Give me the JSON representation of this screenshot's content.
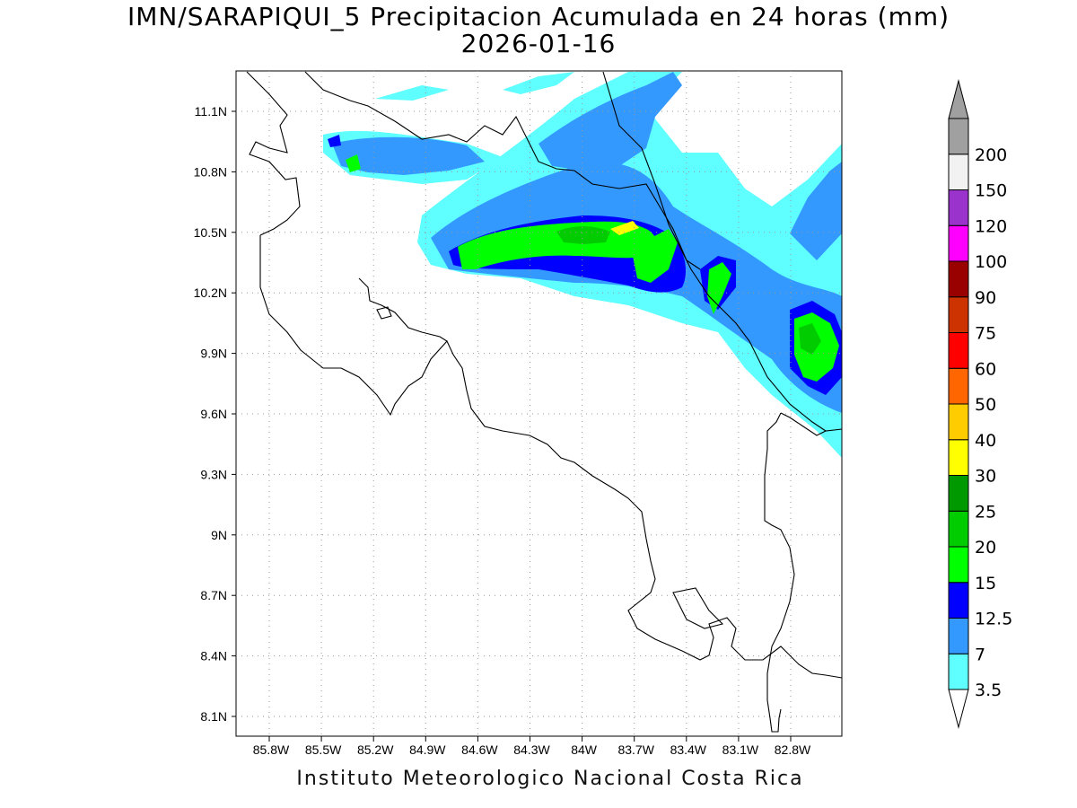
{
  "header": {
    "title": "IMN/SARAPIQUI_5 Precipitacion Acumulada en 24 horas (mm)",
    "date": "2026-01-16"
  },
  "footer": {
    "credit": "Instituto Meteorologico Nacional Costa Rica"
  },
  "map": {
    "lat_ticks": [
      "11.1N",
      "10.8N",
      "10.5N",
      "10.2N",
      "9.9N",
      "9.6N",
      "9.3N",
      "9N",
      "8.7N",
      "8.4N",
      "8.1N"
    ],
    "lon_ticks": [
      "85.8W",
      "85.5W",
      "85.2W",
      "84.9W",
      "84.6W",
      "84.3W",
      "84W",
      "83.7W",
      "83.4W",
      "83.1W",
      "82.8W"
    ],
    "grid": true
  },
  "colorbar": {
    "labels": [
      "3.5",
      "7",
      "12.5",
      "15",
      "20",
      "25",
      "30",
      "40",
      "50",
      "60",
      "75",
      "90",
      "100",
      "120",
      "150",
      "200"
    ],
    "colors": [
      "#5fffff",
      "#3399ff",
      "#0000ff",
      "#00ff00",
      "#00cc00",
      "#009900",
      "#ffff00",
      "#ffcc00",
      "#ff6600",
      "#ff0000",
      "#cc3300",
      "#990000",
      "#ff00ff",
      "#9933cc",
      "#f2f2f2",
      "#a0a0a0"
    ]
  }
}
